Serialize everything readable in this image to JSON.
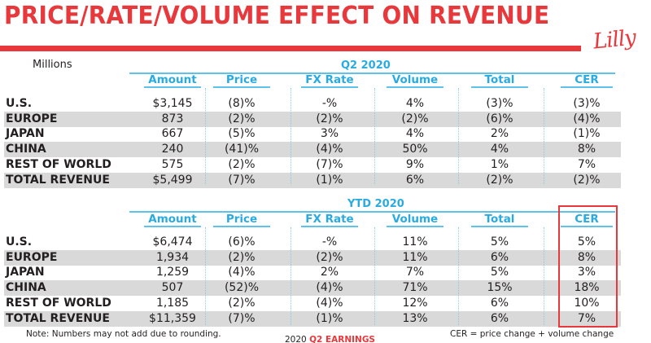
{
  "header": {
    "title": "PRICE/RATE/VOLUME EFFECT ON REVENUE",
    "logo_text": "Lilly",
    "units_label": "Millions"
  },
  "colors": {
    "accent_red": "#e8383b",
    "header_blue": "#29abe2",
    "band_gray": "#d9d9d9"
  },
  "columns": [
    "Amount",
    "Price",
    "FX Rate",
    "Volume",
    "Total",
    "CER"
  ],
  "q2": {
    "title": "Q2 2020",
    "rows": [
      {
        "label": "U.S.",
        "amount": "$3,145",
        "price": "(8)%",
        "fx": "-%",
        "volume": "4%",
        "total": "(3)%",
        "cer": "(3)%"
      },
      {
        "label": "EUROPE",
        "amount": "873",
        "price": "(2)%",
        "fx": "(2)%",
        "volume": "(2)%",
        "total": "(6)%",
        "cer": "(4)%"
      },
      {
        "label": "JAPAN",
        "amount": "667",
        "price": "(5)%",
        "fx": "3%",
        "volume": "4%",
        "total": "2%",
        "cer": "(1)%"
      },
      {
        "label": "CHINA",
        "amount": "240",
        "price": "(41)%",
        "fx": "(4)%",
        "volume": "50%",
        "total": "4%",
        "cer": "8%"
      },
      {
        "label": "REST OF WORLD",
        "amount": "575",
        "price": "(2)%",
        "fx": "(7)%",
        "volume": "9%",
        "total": "1%",
        "cer": "7%"
      },
      {
        "label": "TOTAL REVENUE",
        "amount": "$5,499",
        "price": "(7)%",
        "fx": "(1)%",
        "volume": "6%",
        "total": "(2)%",
        "cer": "(2)%"
      }
    ]
  },
  "ytd": {
    "title": "YTD 2020",
    "rows": [
      {
        "label": "U.S.",
        "amount": "$6,474",
        "price": "(6)%",
        "fx": "-%",
        "volume": "11%",
        "total": "5%",
        "cer": "5%"
      },
      {
        "label": "EUROPE",
        "amount": "1,934",
        "price": "(2)%",
        "fx": "(2)%",
        "volume": "11%",
        "total": "6%",
        "cer": "8%"
      },
      {
        "label": "JAPAN",
        "amount": "1,259",
        "price": "(4)%",
        "fx": "2%",
        "volume": "7%",
        "total": "5%",
        "cer": "3%"
      },
      {
        "label": "CHINA",
        "amount": "507",
        "price": "(52)%",
        "fx": "(4)%",
        "volume": "71%",
        "total": "15%",
        "cer": "18%"
      },
      {
        "label": "REST OF WORLD",
        "amount": "1,185",
        "price": "(2)%",
        "fx": "(4)%",
        "volume": "12%",
        "total": "6%",
        "cer": "10%"
      },
      {
        "label": "TOTAL REVENUE",
        "amount": "$11,359",
        "price": "(7)%",
        "fx": "(1)%",
        "volume": "13%",
        "total": "6%",
        "cer": "7%"
      }
    ]
  },
  "footer": {
    "note": "Note:  Numbers may not add due to rounding.",
    "year": "2020 ",
    "earnings": "Q2 EARNINGS",
    "cer_definition": "CER = price change + volume change"
  }
}
